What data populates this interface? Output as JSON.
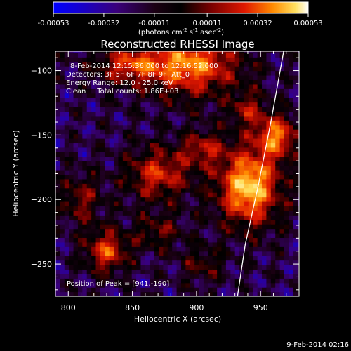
{
  "chart_data": {
    "type": "heatmap",
    "title": "Reconstructed RHESSI Image",
    "xlabel": "Heliocentric X (arcsec)",
    "ylabel": "Heliocentric Y (arcsec)",
    "xlim": [
      790,
      980
    ],
    "ylim": [
      -275,
      -85
    ],
    "x_ticks": [
      800,
      850,
      900,
      950
    ],
    "y_ticks": [
      -100,
      -150,
      -200,
      -250
    ],
    "colorbar": {
      "ticks": [
        "-0.00053",
        "-0.00032",
        "-0.00011",
        "0.00011",
        "0.00032",
        "0.00053"
      ],
      "tick_values": [
        -0.00053,
        -0.00032,
        -0.00011,
        0.00011,
        0.00032,
        0.00053
      ],
      "unit_prefix": "(photons cm",
      "unit_exp1": "-2",
      "unit_mid": " s",
      "unit_exp2": "-1",
      "unit_mid2": " asec",
      "unit_exp3": "-2",
      "unit_suffix": ")"
    },
    "annotations": [
      "8-Feb-2014 12:15:36.000 to 12:16:52.000",
      "Detectors: 3F 5F 6F 7F 8F 9F, Att_0",
      "Energy Range: 12.0 - 25.0 keV",
      "Clean     Total counts: 1.86E+03"
    ],
    "peak_label": "Position of Peak = [941,-190]",
    "peak": {
      "x": 941,
      "y": -190
    },
    "sources": [
      {
        "x": 941,
        "y": -190,
        "sx": 18,
        "sy": 22,
        "amp": 1.0
      },
      {
        "x": 963,
        "y": -150,
        "sx": 12,
        "sy": 12,
        "amp": 0.75
      },
      {
        "x": 895,
        "y": -95,
        "sx": 28,
        "sy": 18,
        "amp": 0.85
      },
      {
        "x": 845,
        "y": -95,
        "sx": 18,
        "sy": 10,
        "amp": 0.55
      },
      {
        "x": 830,
        "y": -240,
        "sx": 12,
        "sy": 12,
        "amp": 0.7
      },
      {
        "x": 870,
        "y": -180,
        "sx": 18,
        "sy": 15,
        "amp": 0.65
      },
      {
        "x": 905,
        "y": -160,
        "sx": 12,
        "sy": 10,
        "amp": 0.5
      },
      {
        "x": 810,
        "y": -200,
        "sx": 12,
        "sy": 14,
        "amp": 0.45
      },
      {
        "x": 870,
        "y": -225,
        "sx": 14,
        "sy": 10,
        "amp": 0.4
      },
      {
        "x": 940,
        "y": -130,
        "sx": 10,
        "sy": 10,
        "amp": 0.45
      },
      {
        "x": 905,
        "y": -250,
        "sx": 12,
        "sy": 10,
        "amp": 0.35
      }
    ],
    "limb": {
      "points": [
        [
          968,
          -85
        ],
        [
          958,
          -140
        ],
        [
          948,
          -190
        ],
        [
          938,
          -235
        ],
        [
          932,
          -275
        ]
      ]
    },
    "colors": {
      "background": "#000000",
      "text": "#ffffff",
      "limb": "#ffffff"
    }
  },
  "footer": {
    "date": "9-Feb-2014 02:16"
  }
}
